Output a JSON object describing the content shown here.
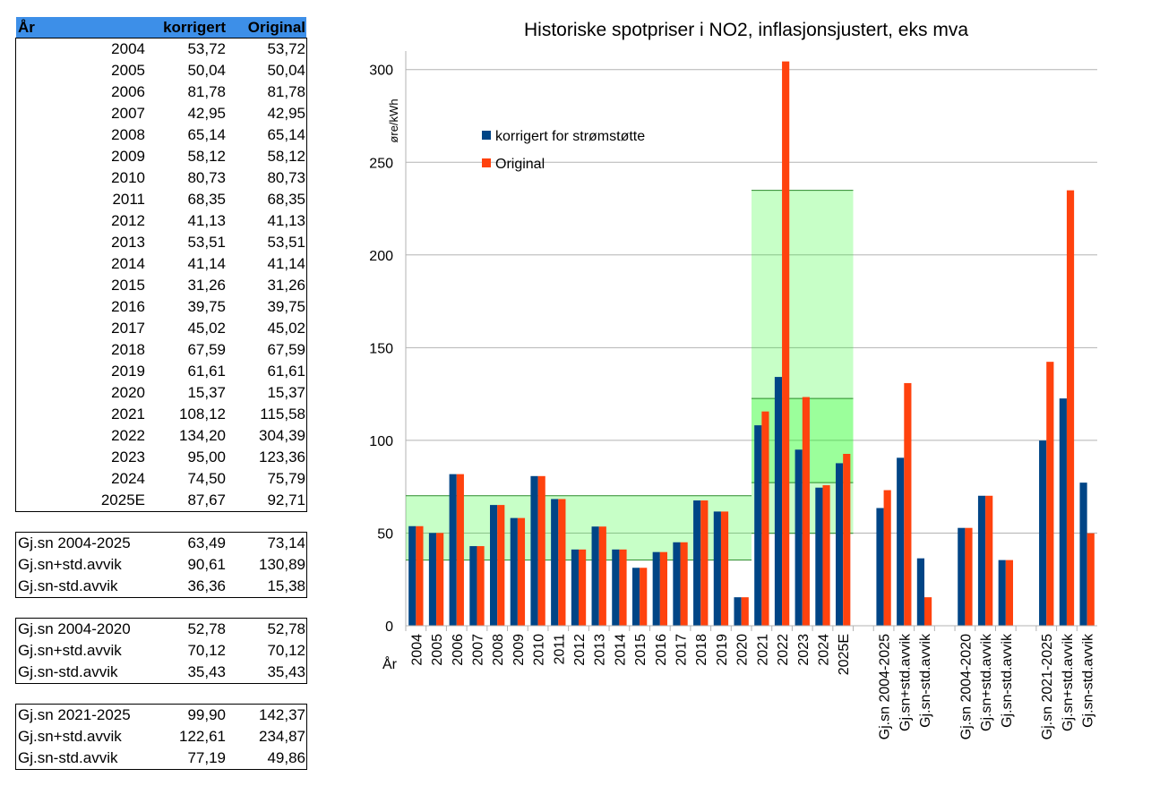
{
  "table": {
    "header": [
      "År",
      "korrigert",
      "Original"
    ],
    "years": [
      [
        "2004",
        "53,72",
        "53,72"
      ],
      [
        "2005",
        "50,04",
        "50,04"
      ],
      [
        "2006",
        "81,78",
        "81,78"
      ],
      [
        "2007",
        "42,95",
        "42,95"
      ],
      [
        "2008",
        "65,14",
        "65,14"
      ],
      [
        "2009",
        "58,12",
        "58,12"
      ],
      [
        "2010",
        "80,73",
        "80,73"
      ],
      [
        "2011",
        "68,35",
        "68,35"
      ],
      [
        "2012",
        "41,13",
        "41,13"
      ],
      [
        "2013",
        "53,51",
        "53,51"
      ],
      [
        "2014",
        "41,14",
        "41,14"
      ],
      [
        "2015",
        "31,26",
        "31,26"
      ],
      [
        "2016",
        "39,75",
        "39,75"
      ],
      [
        "2017",
        "45,02",
        "45,02"
      ],
      [
        "2018",
        "67,59",
        "67,59"
      ],
      [
        "2019",
        "61,61",
        "61,61"
      ],
      [
        "2020",
        "15,37",
        "15,37"
      ],
      [
        "2021",
        "108,12",
        "115,58"
      ],
      [
        "2022",
        "134,20",
        "304,39"
      ],
      [
        "2023",
        "95,00",
        "123,36"
      ],
      [
        "2024",
        "74,50",
        "75,79"
      ],
      [
        "2025E",
        "87,67",
        "92,71"
      ]
    ],
    "summaries": [
      [
        [
          "Gj.sn 2004-2025",
          "63,49",
          "73,14"
        ],
        [
          "Gj.sn+std.avvik",
          "90,61",
          "130,89"
        ],
        [
          "Gj.sn-std.avvik",
          "36,36",
          "15,38"
        ]
      ],
      [
        [
          "Gj.sn 2004-2020",
          "52,78",
          "52,78"
        ],
        [
          "Gj.sn+std.avvik",
          "70,12",
          "70,12"
        ],
        [
          "Gj.sn-std.avvik",
          "35,43",
          "35,43"
        ]
      ],
      [
        [
          "Gj.sn 2021-2025",
          "99,90",
          "142,37"
        ],
        [
          "Gj.sn+std.avvik",
          "122,61",
          "234,87"
        ],
        [
          "Gj.sn-std.avvik",
          "77,19",
          "49,86"
        ]
      ]
    ]
  },
  "chart_data": {
    "type": "bar",
    "title": "Historiske spotpriser i NO2, inflasjonsjustert, eks mva",
    "x_label": "År",
    "y_label": "øre/kWh",
    "categories": [
      "2004",
      "2005",
      "2006",
      "2007",
      "2008",
      "2009",
      "2010",
      "2011",
      "2012",
      "2013",
      "2014",
      "2015",
      "2016",
      "2017",
      "2018",
      "2019",
      "2020",
      "2021",
      "2022",
      "2023",
      "2024",
      "2025E",
      null,
      "Gj.sn 2004-2025",
      "Gj.sn+std.avvik",
      "Gj.sn-std.avvik",
      null,
      "Gj.sn 2004-2020",
      "Gj.sn+std.avvik",
      "Gj.sn-std.avvik",
      null,
      "Gj.sn 2021-2025",
      "Gj.sn+std.avvik",
      "Gj.sn-std.avvik"
    ],
    "series": [
      {
        "name": "korrigert for strømstøtte",
        "color": "#004586",
        "values": [
          53.72,
          50.04,
          81.78,
          42.95,
          65.14,
          58.12,
          80.73,
          68.35,
          41.13,
          53.51,
          41.14,
          31.26,
          39.75,
          45.02,
          67.59,
          61.61,
          15.37,
          108.12,
          134.2,
          95.0,
          74.5,
          87.67,
          null,
          63.49,
          90.61,
          36.36,
          null,
          52.78,
          70.12,
          35.43,
          null,
          99.9,
          122.61,
          77.19
        ]
      },
      {
        "name": "Original",
        "color": "#ff420e",
        "values": [
          53.72,
          50.04,
          81.78,
          42.95,
          65.14,
          58.12,
          80.73,
          68.35,
          41.13,
          53.51,
          41.14,
          31.26,
          39.75,
          45.02,
          67.59,
          61.61,
          15.37,
          115.58,
          304.39,
          123.36,
          75.79,
          92.71,
          null,
          73.14,
          130.89,
          15.38,
          null,
          52.78,
          70.12,
          35.43,
          null,
          142.37,
          234.87,
          49.86
        ]
      }
    ],
    "bands": [
      {
        "start": "2004",
        "end": "2020",
        "low": 35.43,
        "high": 70.12,
        "color": "#00ff00"
      },
      {
        "start": "2021",
        "end": "2025E",
        "low": 49.86,
        "high": 234.87,
        "color": "#00ff00"
      },
      {
        "start": "2021",
        "end": "2025E",
        "low": 77.19,
        "high": 122.61,
        "color": "#00ff00"
      }
    ],
    "ylim": [
      0,
      310
    ],
    "yticks": [
      0,
      50,
      100,
      150,
      200,
      250,
      300
    ],
    "grid": true
  }
}
